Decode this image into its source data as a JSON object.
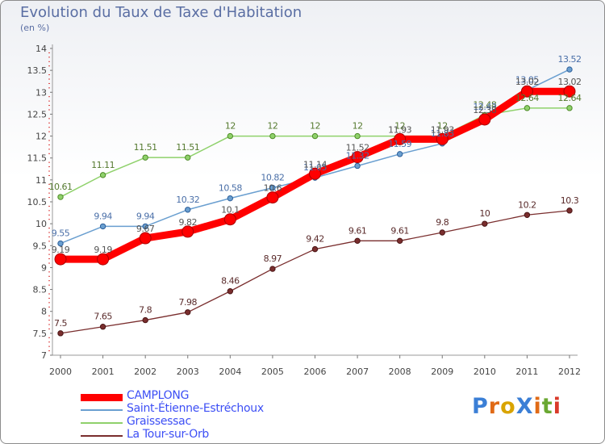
{
  "title": "Evolution du Taux de Taxe d'Habitation",
  "unit_label": "(en %)",
  "logo": {
    "text": "ProXiti",
    "letters": [
      "P",
      "r",
      "o",
      "X",
      "i",
      "t",
      "i"
    ],
    "colors": [
      "#3b7fd6",
      "#e06a16",
      "#d9a400",
      "#3b7fd6",
      "#e06a16",
      "#6aa832",
      "#d93a2a"
    ]
  },
  "chart_data": {
    "type": "line",
    "title": "Evolution du Taux de Taxe d'Habitation",
    "ylabel": "(en %)",
    "xlabel": "",
    "x": [
      "2000",
      "2001",
      "2002",
      "2003",
      "2004",
      "2005",
      "2006",
      "2007",
      "2008",
      "2009",
      "2010",
      "2011",
      "2012"
    ],
    "ylim": [
      7,
      14
    ],
    "yticks": [
      "7",
      "7.5",
      "8",
      "8.5",
      "9",
      "9.5",
      "10",
      "10.5",
      "11",
      "11.5",
      "12",
      "12.5",
      "13",
      "13.5",
      "14"
    ],
    "grid": false,
    "legend_position": "bottom-left",
    "series": [
      {
        "name": "CAMPLONG",
        "color": "#ff0000",
        "values": [
          9.19,
          9.19,
          9.67,
          9.82,
          10.1,
          10.6,
          11.14,
          11.52,
          11.93,
          11.93,
          12.38,
          13.02,
          13.02
        ],
        "labels": [
          "9.19",
          "9.19",
          "9.67",
          "9.82",
          "10.1",
          "10.6",
          "11.14",
          "11.52",
          "11.93",
          "11.93",
          "12.38",
          "13.02",
          "13.02"
        ]
      },
      {
        "name": "Saint-Étienne-Estréchoux",
        "color": "#6a9fd0",
        "values": [
          9.55,
          9.94,
          9.94,
          10.32,
          10.58,
          10.82,
          11.05,
          11.32,
          11.59,
          11.83,
          12.43,
          13.05,
          13.52
        ],
        "labels": [
          "9.55",
          "9.94",
          "9.94",
          "10.32",
          "10.58",
          "10.82",
          "11.05",
          "11.32",
          "11.59",
          "11.83",
          "12.43",
          "13.05",
          "13.52"
        ]
      },
      {
        "name": "Graissessac",
        "color": "#8fd16b",
        "values": [
          10.61,
          11.11,
          11.51,
          11.51,
          12,
          12,
          12,
          12,
          12,
          12,
          12.48,
          12.64,
          12.64
        ],
        "labels": [
          "10.61",
          "11.11",
          "11.51",
          "11.51",
          "12",
          "12",
          "12",
          "12",
          "12",
          "12",
          "12.48",
          "12.64",
          "12.64"
        ]
      },
      {
        "name": "La Tour-sur-Orb",
        "color": "#7a2e2e",
        "values": [
          7.5,
          7.65,
          7.8,
          7.98,
          8.46,
          8.97,
          9.42,
          9.61,
          9.61,
          9.8,
          10,
          10.2,
          10.3
        ],
        "labels": [
          "7.5",
          "7.65",
          "7.8",
          "7.98",
          "8.46",
          "8.97",
          "9.42",
          "9.61",
          "9.61",
          "9.8",
          "10",
          "10.2",
          "10.3"
        ]
      }
    ]
  }
}
